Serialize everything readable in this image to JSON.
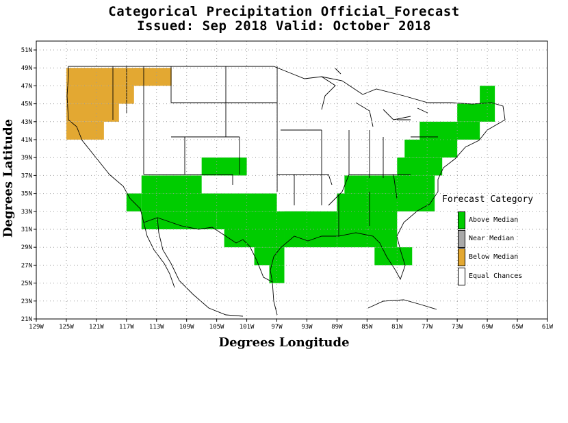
{
  "title": {
    "line1": "Categorical Precipitation Official_Forecast",
    "line2": "Issued: Sep 2018 Valid: October 2018"
  },
  "axes": {
    "xlabel": "Degrees Longitude",
    "ylabel": "Degrees Latitude",
    "x_ticks": [
      "129W",
      "125W",
      "121W",
      "117W",
      "113W",
      "109W",
      "105W",
      "101W",
      "97W",
      "93W",
      "89W",
      "85W",
      "81W",
      "77W",
      "73W",
      "69W",
      "65W",
      "61W"
    ],
    "y_ticks": [
      "51N",
      "49N",
      "47N",
      "45N",
      "43N",
      "41N",
      "39N",
      "37N",
      "35N",
      "33N",
      "31N",
      "29N",
      "27N",
      "25N",
      "23N",
      "21N"
    ],
    "x_range": [
      -129,
      -61
    ],
    "y_range": [
      21,
      52
    ]
  },
  "legend": {
    "title": "Forecast Category",
    "items": [
      {
        "label": "Above Median",
        "color": "#00cc00"
      },
      {
        "label": "Near Median",
        "color": "#a9a9a9"
      },
      {
        "label": "Below Median",
        "color": "#e3a832"
      },
      {
        "label": "Equal Chances",
        "color": "#ffffff"
      }
    ]
  },
  "regions": {
    "below_median": [
      {
        "lon": [
          -125,
          -115
        ],
        "lat": [
          47,
          49
        ]
      },
      {
        "lon": [
          -125,
          -116
        ],
        "lat": [
          45,
          47
        ]
      },
      {
        "lon": [
          -125,
          -118
        ],
        "lat": [
          43,
          45
        ]
      },
      {
        "lon": [
          -125,
          -120
        ],
        "lat": [
          41,
          43
        ]
      },
      {
        "lon": [
          -116,
          -111
        ],
        "lat": [
          47,
          49
        ]
      }
    ],
    "above_median": [
      {
        "lon": [
          -107,
          -101
        ],
        "lat": [
          37,
          39
        ]
      },
      {
        "lon": [
          -115,
          -107
        ],
        "lat": [
          35,
          37
        ]
      },
      {
        "lon": [
          -117,
          -115
        ],
        "lat": [
          33,
          35
        ]
      },
      {
        "lon": [
          -115,
          -97
        ],
        "lat": [
          33,
          35
        ]
      },
      {
        "lon": [
          -115,
          -105
        ],
        "lat": [
          31,
          33
        ]
      },
      {
        "lon": [
          -105,
          -93
        ],
        "lat": [
          31,
          33
        ]
      },
      {
        "lon": [
          -104,
          -96
        ],
        "lat": [
          29,
          31
        ]
      },
      {
        "lon": [
          -100,
          -96
        ],
        "lat": [
          27,
          29
        ]
      },
      {
        "lon": [
          -98,
          -96
        ],
        "lat": [
          25,
          27
        ]
      },
      {
        "lon": [
          -96,
          -89
        ],
        "lat": [
          29,
          33
        ]
      },
      {
        "lon": [
          -89,
          -81
        ],
        "lat": [
          29,
          35
        ]
      },
      {
        "lon": [
          -84,
          -79
        ],
        "lat": [
          27,
          29
        ]
      },
      {
        "lon": [
          -88,
          -76
        ],
        "lat": [
          35,
          37
        ]
      },
      {
        "lon": [
          -82,
          -76
        ],
        "lat": [
          33,
          35
        ]
      },
      {
        "lon": [
          -81,
          -75
        ],
        "lat": [
          37,
          39
        ]
      },
      {
        "lon": [
          -80,
          -73
        ],
        "lat": [
          39,
          41
        ]
      },
      {
        "lon": [
          -78,
          -70
        ],
        "lat": [
          41,
          43
        ]
      },
      {
        "lon": [
          -73,
          -68
        ],
        "lat": [
          43,
          45
        ]
      },
      {
        "lon": [
          -70,
          -68
        ],
        "lat": [
          45,
          47
        ]
      }
    ]
  }
}
